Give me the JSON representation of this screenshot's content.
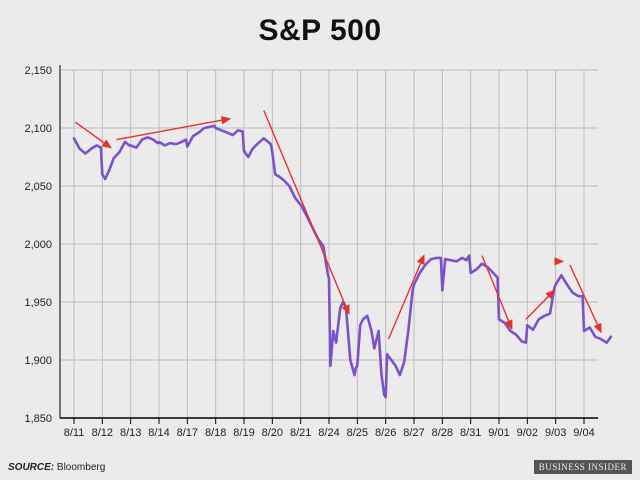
{
  "chart_data": {
    "type": "line",
    "title": "S&P 500",
    "xlabel": "",
    "ylabel": "",
    "ylim": [
      1850,
      2150
    ],
    "yticks": [
      "1,850",
      "1,900",
      "1,950",
      "2,000",
      "2,050",
      "2,100",
      "2,150"
    ],
    "ytick_values": [
      1850,
      1900,
      1950,
      2000,
      2050,
      2100,
      2150
    ],
    "categories": [
      "8/11",
      "8/12",
      "8/13",
      "8/14",
      "8/17",
      "8/18",
      "8/19",
      "8/20",
      "8/21",
      "8/24",
      "8/25",
      "8/26",
      "8/27",
      "8/28",
      "8/31",
      "9/01",
      "9/02",
      "9/03",
      "9/04"
    ],
    "grid": true,
    "line_color": "#7b52c9",
    "arrow_color": "#e8302a",
    "series": [
      {
        "values": [
          [
            0.0,
            2091
          ],
          [
            0.2,
            2082
          ],
          [
            0.4,
            2078
          ],
          [
            0.6,
            2082
          ],
          [
            0.8,
            2085
          ],
          [
            0.95,
            2083
          ],
          [
            1.0,
            2060
          ],
          [
            1.1,
            2056
          ],
          [
            1.25,
            2064
          ],
          [
            1.4,
            2074
          ],
          [
            1.6,
            2079
          ],
          [
            1.8,
            2088
          ],
          [
            1.95,
            2085
          ],
          [
            2.0,
            2085
          ],
          [
            2.2,
            2083
          ],
          [
            2.4,
            2090
          ],
          [
            2.6,
            2092
          ],
          [
            2.8,
            2090
          ],
          [
            2.95,
            2087
          ],
          [
            3.0,
            2088
          ],
          [
            3.2,
            2085
          ],
          [
            3.4,
            2087
          ],
          [
            3.6,
            2086
          ],
          [
            3.8,
            2088
          ],
          [
            3.95,
            2090
          ],
          [
            4.0,
            2084
          ],
          [
            4.2,
            2093
          ],
          [
            4.4,
            2096
          ],
          [
            4.6,
            2100
          ],
          [
            4.8,
            2101
          ],
          [
            4.95,
            2102
          ],
          [
            5.0,
            2100
          ],
          [
            5.2,
            2098
          ],
          [
            5.4,
            2096
          ],
          [
            5.6,
            2094
          ],
          [
            5.8,
            2098
          ],
          [
            5.95,
            2097
          ],
          [
            6.0,
            2080
          ],
          [
            6.15,
            2075
          ],
          [
            6.3,
            2082
          ],
          [
            6.5,
            2087
          ],
          [
            6.7,
            2091
          ],
          [
            6.85,
            2088
          ],
          [
            6.95,
            2086
          ],
          [
            7.0,
            2079
          ],
          [
            7.1,
            2060
          ],
          [
            7.25,
            2058
          ],
          [
            7.4,
            2055
          ],
          [
            7.6,
            2050
          ],
          [
            7.8,
            2040
          ],
          [
            7.95,
            2035
          ],
          [
            8.0,
            2034
          ],
          [
            8.2,
            2025
          ],
          [
            8.4,
            2015
          ],
          [
            8.6,
            2005
          ],
          [
            8.8,
            1998
          ],
          [
            8.95,
            1975
          ],
          [
            9.0,
            1970
          ],
          [
            9.05,
            1895
          ],
          [
            9.15,
            1925
          ],
          [
            9.25,
            1915
          ],
          [
            9.4,
            1945
          ],
          [
            9.5,
            1950
          ],
          [
            9.6,
            1945
          ],
          [
            9.75,
            1900
          ],
          [
            9.9,
            1887
          ],
          [
            9.95,
            1893
          ],
          [
            10.0,
            1895
          ],
          [
            10.1,
            1930
          ],
          [
            10.2,
            1935
          ],
          [
            10.35,
            1938
          ],
          [
            10.5,
            1925
          ],
          [
            10.6,
            1910
          ],
          [
            10.75,
            1925
          ],
          [
            10.85,
            1888
          ],
          [
            10.95,
            1870
          ],
          [
            11.0,
            1868
          ],
          [
            11.05,
            1905
          ],
          [
            11.2,
            1900
          ],
          [
            11.35,
            1895
          ],
          [
            11.5,
            1887
          ],
          [
            11.65,
            1898
          ],
          [
            11.8,
            1925
          ],
          [
            11.95,
            1960
          ],
          [
            12.0,
            1965
          ],
          [
            12.2,
            1975
          ],
          [
            12.4,
            1982
          ],
          [
            12.6,
            1987
          ],
          [
            12.8,
            1988
          ],
          [
            12.95,
            1988
          ],
          [
            13.0,
            1960
          ],
          [
            13.1,
            1987
          ],
          [
            13.3,
            1986
          ],
          [
            13.5,
            1985
          ],
          [
            13.7,
            1988
          ],
          [
            13.85,
            1986
          ],
          [
            13.95,
            1990
          ],
          [
            14.0,
            1975
          ],
          [
            14.2,
            1978
          ],
          [
            14.4,
            1983
          ],
          [
            14.6,
            1980
          ],
          [
            14.8,
            1975
          ],
          [
            14.95,
            1971
          ],
          [
            15.0,
            1935
          ],
          [
            15.2,
            1932
          ],
          [
            15.4,
            1925
          ],
          [
            15.6,
            1922
          ],
          [
            15.8,
            1916
          ],
          [
            15.95,
            1915
          ],
          [
            16.0,
            1930
          ],
          [
            16.2,
            1926
          ],
          [
            16.4,
            1935
          ],
          [
            16.6,
            1938
          ],
          [
            16.8,
            1940
          ],
          [
            16.95,
            1962
          ],
          [
            17.0,
            1965
          ],
          [
            17.2,
            1973
          ],
          [
            17.4,
            1965
          ],
          [
            17.6,
            1958
          ],
          [
            17.8,
            1955
          ],
          [
            17.95,
            1955
          ],
          [
            18.0,
            1925
          ],
          [
            18.2,
            1928
          ],
          [
            18.4,
            1920
          ],
          [
            18.6,
            1918
          ],
          [
            18.8,
            1915
          ],
          [
            18.95,
            1920
          ]
        ]
      }
    ],
    "annotations": [
      {
        "type": "arrow",
        "from": [
          0.05,
          2105
        ],
        "to": [
          1.3,
          2083
        ]
      },
      {
        "type": "arrow",
        "from": [
          1.5,
          2090
        ],
        "to": [
          5.5,
          2108
        ]
      },
      {
        "type": "arrow",
        "from": [
          6.7,
          2115
        ],
        "to": [
          9.7,
          1940
        ]
      },
      {
        "type": "arrow",
        "from": [
          11.1,
          1918
        ],
        "to": [
          12.35,
          1990
        ]
      },
      {
        "type": "arrow",
        "from": [
          14.4,
          1990
        ],
        "to": [
          15.45,
          1927
        ]
      },
      {
        "type": "arrow",
        "from": [
          15.95,
          1935
        ],
        "to": [
          16.95,
          1960
        ]
      },
      {
        "type": "arrow",
        "from": [
          17.2,
          1985
        ],
        "to": [
          17.25,
          1985
        ]
      },
      {
        "type": "arrow",
        "from": [
          17.5,
          1982
        ],
        "to": [
          18.6,
          1924
        ]
      }
    ]
  },
  "footer": {
    "source_label": "SOURCE:",
    "source_text": "Bloomberg",
    "brand": "BUSINESS INSIDER"
  }
}
